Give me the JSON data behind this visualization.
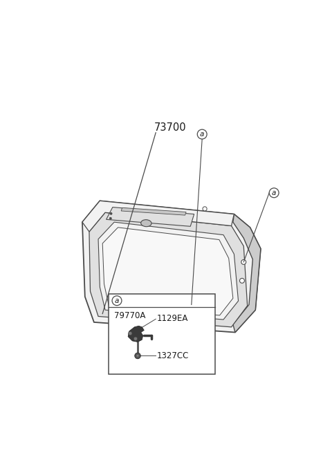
{
  "bg_color": "#ffffff",
  "part_number_main": "73700",
  "label_a": "a",
  "part_79770A": "79770A",
  "part_1129EA": "1129EA",
  "part_1327CC": "1327CC",
  "line_color": "#4a4a4a",
  "fill_light": "#f2f2f2",
  "fill_mid": "#e0e0e0",
  "fill_dark": "#cccccc",
  "text_color": "#1a1a1a"
}
